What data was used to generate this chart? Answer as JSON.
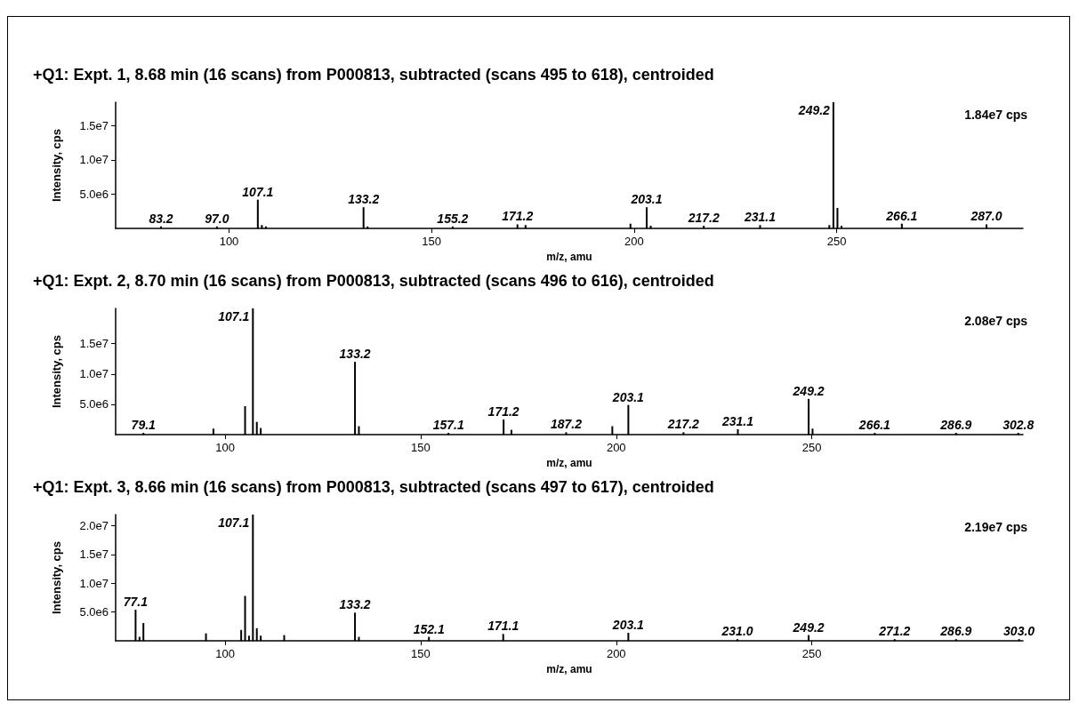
{
  "chart_data": [
    {
      "type": "bar",
      "title": "+Q1: Expt. 1, 8.68 min (16 scans) from P000813, subtracted (scans 495 to 618), centroided",
      "xlabel": "m/z, amu",
      "ylabel": "Intensity, cps",
      "xlim": [
        72,
        296
      ],
      "xticks": [
        100,
        150,
        200,
        250
      ],
      "ylim": [
        0,
        18400000
      ],
      "yticks": [
        {
          "value": 5000000,
          "label": "5.0e6"
        },
        {
          "value": 10000000,
          "label": "1.0e7"
        },
        {
          "value": 15000000,
          "label": "1.5e7"
        }
      ],
      "annotations": [
        "1.84e7 cps",
        {
          "text": "83.2",
          "x": 83.2,
          "y": 300000
        },
        {
          "text": "97.0",
          "x": 97.0,
          "y": 300000
        },
        {
          "text": "107.1",
          "x": 107.1,
          "y": 4200000
        },
        {
          "text": "133.2",
          "x": 133.2,
          "y": 3100000
        },
        {
          "text": "155.2",
          "x": 155.2,
          "y": 300000
        },
        {
          "text": "171.2",
          "x": 171.2,
          "y": 600000
        },
        {
          "text": "203.1",
          "x": 203.1,
          "y": 3100000
        },
        {
          "text": "217.2",
          "x": 217.2,
          "y": 400000
        },
        {
          "text": "231.1",
          "x": 231.1,
          "y": 500000
        },
        {
          "text": "249.2",
          "x": 249.2,
          "y": 18400000
        },
        {
          "text": "266.1",
          "x": 266.1,
          "y": 700000
        },
        {
          "text": "287.0",
          "x": 287.0,
          "y": 600000
        }
      ],
      "series": [
        {
          "color": "#000000",
          "x": [
            83.2,
            97.0,
            107.1,
            108.1,
            109.1,
            133.2,
            134.2,
            155.2,
            171.2,
            173.2,
            199.1,
            203.1,
            204.1,
            217.2,
            231.1,
            248.2,
            249.2,
            250.2,
            251.2,
            266.1,
            287.0
          ],
          "values": [
            300000,
            300000,
            4200000,
            500000,
            300000,
            3100000,
            300000,
            300000,
            600000,
            500000,
            700000,
            3100000,
            400000,
            400000,
            500000,
            500000,
            18400000,
            3000000,
            400000,
            700000,
            600000
          ]
        }
      ]
    },
    {
      "type": "bar",
      "title": "+Q1: Expt. 2, 8.70 min (16 scans) from P000813, subtracted (scans 496 to 616), centroided",
      "xlabel": "m/z, amu",
      "ylabel": "Intensity, cps",
      "xlim": [
        72,
        304
      ],
      "xticks": [
        100,
        150,
        200,
        250
      ],
      "ylim": [
        0,
        20800000
      ],
      "yticks": [
        {
          "value": 5000000,
          "label": "5.0e6"
        },
        {
          "value": 10000000,
          "label": "1.0e7"
        },
        {
          "value": 15000000,
          "label": "1.5e7"
        }
      ],
      "annotations": [
        "2.08e7 cps",
        {
          "text": "79.1",
          "x": 79.1,
          "y": 300000
        },
        {
          "text": "107.1",
          "x": 107.1,
          "y": 20800000
        },
        {
          "text": "133.2",
          "x": 133.2,
          "y": 12000000
        },
        {
          "text": "157.1",
          "x": 157.1,
          "y": 300000
        },
        {
          "text": "171.2",
          "x": 171.2,
          "y": 2500000
        },
        {
          "text": "187.2",
          "x": 187.2,
          "y": 400000
        },
        {
          "text": "203.1",
          "x": 203.1,
          "y": 4900000
        },
        {
          "text": "217.2",
          "x": 217.2,
          "y": 400000
        },
        {
          "text": "231.1",
          "x": 231.1,
          "y": 900000
        },
        {
          "text": "249.2",
          "x": 249.2,
          "y": 5900000
        },
        {
          "text": "266.1",
          "x": 266.1,
          "y": 300000
        },
        {
          "text": "286.9",
          "x": 286.9,
          "y": 300000
        },
        {
          "text": "302.8",
          "x": 302.8,
          "y": 300000
        }
      ],
      "series": [
        {
          "color": "#000000",
          "x": [
            79.1,
            97.0,
            105.1,
            107.1,
            108.1,
            109.1,
            133.2,
            134.2,
            157.1,
            171.2,
            173.2,
            187.2,
            199.0,
            203.1,
            217.2,
            231.1,
            249.2,
            250.2,
            266.1,
            286.9,
            302.8
          ],
          "values": [
            300000,
            1000000,
            4700000,
            20800000,
            2100000,
            1100000,
            12000000,
            1400000,
            300000,
            2500000,
            800000,
            400000,
            1400000,
            4900000,
            400000,
            900000,
            5900000,
            1000000,
            300000,
            300000,
            300000
          ]
        }
      ]
    },
    {
      "type": "bar",
      "title": "+Q1: Expt. 3, 8.66 min (16 scans) from P000813, subtracted (scans 497 to 617), centroided",
      "xlabel": "m/z, amu",
      "ylabel": "Intensity, cps",
      "xlim": [
        72,
        304
      ],
      "xticks": [
        100,
        150,
        200,
        250
      ],
      "ylim": [
        0,
        21900000
      ],
      "yticks": [
        {
          "value": 5000000,
          "label": "5.0e6"
        },
        {
          "value": 10000000,
          "label": "1.0e7"
        },
        {
          "value": 15000000,
          "label": "1.5e7"
        },
        {
          "value": 20000000,
          "label": "2.0e7"
        }
      ],
      "annotations": [
        "2.19e7 cps",
        {
          "text": "77.1",
          "x": 77.1,
          "y": 5400000
        },
        {
          "text": "107.1",
          "x": 107.1,
          "y": 21900000
        },
        {
          "text": "133.2",
          "x": 133.2,
          "y": 4900000
        },
        {
          "text": "152.1",
          "x": 152.1,
          "y": 700000
        },
        {
          "text": "171.1",
          "x": 171.1,
          "y": 1200000
        },
        {
          "text": "203.1",
          "x": 203.1,
          "y": 1400000
        },
        {
          "text": "231.0",
          "x": 231.0,
          "y": 300000
        },
        {
          "text": "249.2",
          "x": 249.2,
          "y": 1000000
        },
        {
          "text": "271.2",
          "x": 271.2,
          "y": 300000
        },
        {
          "text": "286.9",
          "x": 286.9,
          "y": 300000
        },
        {
          "text": "303.0",
          "x": 303.0,
          "y": 300000
        }
      ],
      "series": [
        {
          "color": "#000000",
          "x": [
            77.1,
            78.1,
            79.1,
            95.1,
            104.1,
            105.1,
            106.1,
            107.1,
            108.1,
            109.1,
            115.1,
            133.2,
            134.2,
            152.1,
            171.1,
            203.1,
            231.0,
            249.2,
            271.2,
            286.9,
            303.0
          ],
          "values": [
            5400000,
            700000,
            3100000,
            1300000,
            1900000,
            7800000,
            900000,
            21900000,
            2200000,
            900000,
            1000000,
            4900000,
            700000,
            700000,
            1200000,
            1400000,
            300000,
            1000000,
            300000,
            300000,
            300000
          ]
        }
      ]
    }
  ]
}
